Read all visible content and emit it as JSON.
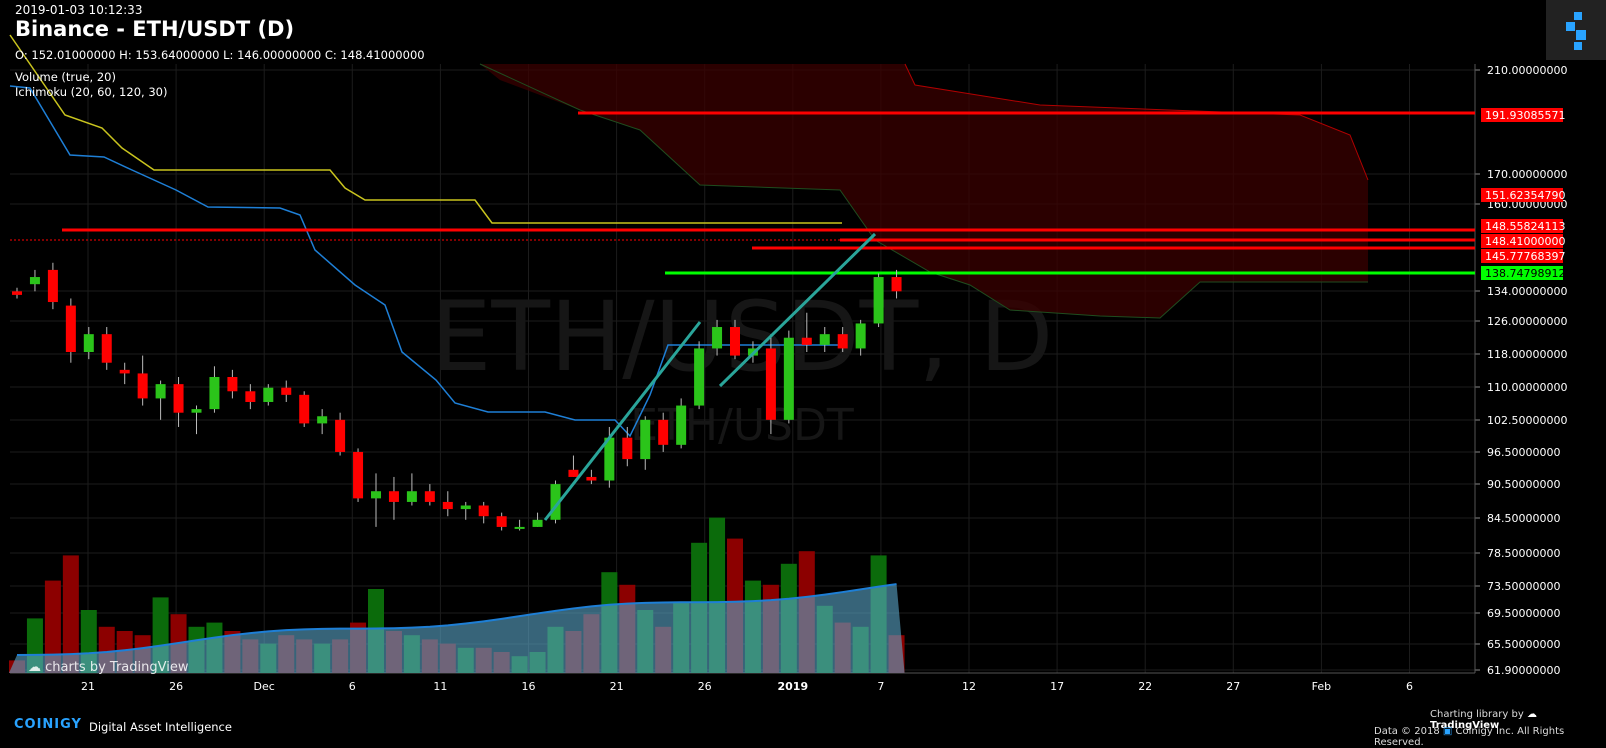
{
  "header": {
    "datetime": "2019-01-03 10:12:33",
    "title": "Binance - ETH/USDT (D)",
    "ohlc": "O: 152.01000000 H: 153.64000000 L: 146.00000000 C: 148.41000000"
  },
  "indicators": [
    "Volume (true, 20)",
    "Ichimoku (20, 60, 120, 30)"
  ],
  "watermark": {
    "main": "ETH/USDT, D",
    "sub": "ETH/USDT"
  },
  "tv_watermark": "charts by TradingView",
  "footer": {
    "brand": "COINIGY",
    "tagline": "Digital Asset Intelligence",
    "charting": "Charting library by",
    "tradingview": "TradingView",
    "copyright": "Data © 2018",
    "copyright_rest": "Coinigy Inc. All Rights Reserved."
  },
  "colors": {
    "up": "#2bc41a",
    "down": "#ff0000",
    "ma": "#1e7fd6",
    "conversion": "#c9c41e",
    "cloud": "#3a0000",
    "trend": "#2aa59a",
    "support": "#00ff00",
    "resistance": "#ff0000"
  },
  "chart_data": {
    "type": "candlestick",
    "y_ticks": [
      "210.00000000",
      "170.00000000",
      "160.00000000",
      "134.00000000",
      "126.00000000",
      "118.00000000",
      "110.00000000",
      "102.50000000",
      "96.50000000",
      "90.50000000",
      "84.50000000",
      "78.50000000",
      "73.50000000",
      "69.50000000",
      "65.50000000",
      "61.90000000"
    ],
    "x_ticks": [
      "21",
      "26",
      "Dec",
      "6",
      "11",
      "16",
      "21",
      "26",
      "2019",
      "7",
      "12",
      "17",
      "22",
      "27",
      "Feb",
      "6"
    ],
    "price_labels": [
      {
        "value": "191.93085571",
        "type": "resistance"
      },
      {
        "value": "151.62354790",
        "type": "resistance"
      },
      {
        "value": "148.55824113",
        "type": "resistance"
      },
      {
        "value": "148.41000000",
        "type": "last"
      },
      {
        "value": "145.77768397",
        "type": "resistance"
      },
      {
        "value": "138.74798912",
        "type": "support"
      }
    ],
    "candles": [
      {
        "o": 148,
        "h": 149,
        "l": 146,
        "c": 147,
        "v": 3
      },
      {
        "o": 150,
        "h": 154,
        "l": 148,
        "c": 152,
        "v": 13
      },
      {
        "o": 154,
        "h": 156,
        "l": 143,
        "c": 145,
        "v": 22
      },
      {
        "o": 144,
        "h": 146,
        "l": 128,
        "c": 131,
        "v": 28
      },
      {
        "o": 131,
        "h": 138,
        "l": 129,
        "c": 136,
        "v": 15
      },
      {
        "o": 136,
        "h": 138,
        "l": 126,
        "c": 128,
        "v": 11
      },
      {
        "o": 126,
        "h": 128,
        "l": 122,
        "c": 125,
        "v": 10
      },
      {
        "o": 125,
        "h": 130,
        "l": 116,
        "c": 118,
        "v": 9
      },
      {
        "o": 118,
        "h": 123,
        "l": 112,
        "c": 122,
        "v": 18
      },
      {
        "o": 122,
        "h": 124,
        "l": 110,
        "c": 114,
        "v": 14
      },
      {
        "o": 114,
        "h": 116,
        "l": 108,
        "c": 115,
        "v": 11
      },
      {
        "o": 115,
        "h": 127,
        "l": 114,
        "c": 124,
        "v": 12
      },
      {
        "o": 124,
        "h": 126,
        "l": 118,
        "c": 120,
        "v": 10
      },
      {
        "o": 120,
        "h": 122,
        "l": 115,
        "c": 117,
        "v": 8
      },
      {
        "o": 117,
        "h": 122,
        "l": 116,
        "c": 121,
        "v": 7
      },
      {
        "o": 121,
        "h": 123,
        "l": 117,
        "c": 119,
        "v": 9
      },
      {
        "o": 119,
        "h": 120,
        "l": 110,
        "c": 111,
        "v": 8
      },
      {
        "o": 111,
        "h": 115,
        "l": 108,
        "c": 113,
        "v": 7
      },
      {
        "o": 112,
        "h": 114,
        "l": 102,
        "c": 103,
        "v": 8
      },
      {
        "o": 103,
        "h": 104,
        "l": 89,
        "c": 90,
        "v": 12
      },
      {
        "o": 90,
        "h": 97,
        "l": 82,
        "c": 92,
        "v": 20
      },
      {
        "o": 92,
        "h": 96,
        "l": 84,
        "c": 89,
        "v": 10
      },
      {
        "o": 89,
        "h": 97,
        "l": 88,
        "c": 92,
        "v": 9
      },
      {
        "o": 92,
        "h": 94,
        "l": 88,
        "c": 89,
        "v": 8
      },
      {
        "o": 89,
        "h": 92,
        "l": 85,
        "c": 87,
        "v": 7
      },
      {
        "o": 87,
        "h": 89,
        "l": 84,
        "c": 88,
        "v": 6
      },
      {
        "o": 88,
        "h": 89,
        "l": 83,
        "c": 85,
        "v": 6
      },
      {
        "o": 85,
        "h": 86,
        "l": 81,
        "c": 82,
        "v": 5
      },
      {
        "o": 82,
        "h": 84,
        "l": 81,
        "c": 82,
        "v": 4
      },
      {
        "o": 82,
        "h": 86,
        "l": 82,
        "c": 84,
        "v": 5
      },
      {
        "o": 84,
        "h": 95,
        "l": 83,
        "c": 94,
        "v": 11
      },
      {
        "o": 98,
        "h": 102,
        "l": 96,
        "c": 96,
        "v": 10
      },
      {
        "o": 96,
        "h": 98,
        "l": 94,
        "c": 95,
        "v": 14
      },
      {
        "o": 95,
        "h": 110,
        "l": 93,
        "c": 107,
        "v": 24
      },
      {
        "o": 107,
        "h": 110,
        "l": 99,
        "c": 101,
        "v": 21
      },
      {
        "o": 101,
        "h": 113,
        "l": 98,
        "c": 112,
        "v": 15
      },
      {
        "o": 112,
        "h": 114,
        "l": 103,
        "c": 105,
        "v": 11
      },
      {
        "o": 105,
        "h": 118,
        "l": 104,
        "c": 116,
        "v": 17
      },
      {
        "o": 116,
        "h": 134,
        "l": 115,
        "c": 132,
        "v": 31
      },
      {
        "o": 132,
        "h": 140,
        "l": 130,
        "c": 138,
        "v": 37
      },
      {
        "o": 138,
        "h": 140,
        "l": 129,
        "c": 130,
        "v": 32
      },
      {
        "o": 130,
        "h": 134,
        "l": 128,
        "c": 132,
        "v": 22
      },
      {
        "o": 132,
        "h": 136,
        "l": 108,
        "c": 112,
        "v": 21
      },
      {
        "o": 112,
        "h": 137,
        "l": 111,
        "c": 135,
        "v": 26
      },
      {
        "o": 135,
        "h": 142,
        "l": 131,
        "c": 133,
        "v": 29
      },
      {
        "o": 133,
        "h": 138,
        "l": 131,
        "c": 136,
        "v": 16
      },
      {
        "o": 136,
        "h": 138,
        "l": 131,
        "c": 132,
        "v": 12
      },
      {
        "o": 132,
        "h": 140,
        "l": 130,
        "c": 139,
        "v": 11
      },
      {
        "o": 139,
        "h": 153,
        "l": 138,
        "c": 152,
        "v": 28
      },
      {
        "o": 152,
        "h": 154,
        "l": 146,
        "c": 148,
        "v": 9
      }
    ]
  }
}
